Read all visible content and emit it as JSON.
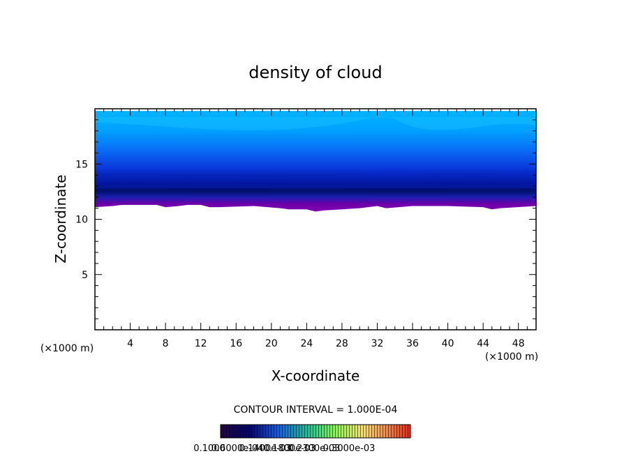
{
  "chart_data": {
    "type": "heatmap",
    "title": "density of cloud",
    "xlabel": "X-coordinate",
    "ylabel": "Z-coordinate",
    "x_unit": "(×1000 m)",
    "y_unit": "(×1000 m)",
    "xlim": [
      0,
      50
    ],
    "ylim": [
      0,
      20
    ],
    "x_ticks": [
      4,
      8,
      12,
      16,
      20,
      24,
      28,
      32,
      36,
      40,
      44,
      48
    ],
    "y_ticks": [
      5,
      10,
      15
    ],
    "contour_interval": "CONTOUR INTERVAL = 1.000E-04",
    "colorbar_labels": [
      "0.1000",
      "0.6000e-04",
      "0.1400e-03",
      "0.1800e-03",
      "0.2300e-03",
      "0.3000e-03"
    ],
    "cloud_base": {
      "x": [
        0,
        2,
        3,
        7,
        8,
        9.5,
        10.5,
        12,
        13,
        14,
        18,
        21,
        22,
        24,
        25,
        26,
        28,
        30,
        32,
        33,
        36,
        40,
        44,
        45,
        46,
        50
      ],
      "z": [
        11.1,
        11.2,
        11.3,
        11.3,
        11.1,
        11.2,
        11.3,
        11.3,
        11.1,
        11.1,
        11.2,
        11.0,
        10.9,
        10.9,
        10.7,
        10.8,
        10.9,
        11.0,
        11.2,
        11.0,
        11.2,
        11.2,
        11.1,
        10.9,
        11.0,
        11.2
      ]
    },
    "cloud_top": 19.8
  },
  "colors": {
    "band_bottom": "#7a00a8",
    "band_dark": "#000a6e",
    "band_mid": "#0a50f0",
    "band_top": "#00aaff"
  }
}
